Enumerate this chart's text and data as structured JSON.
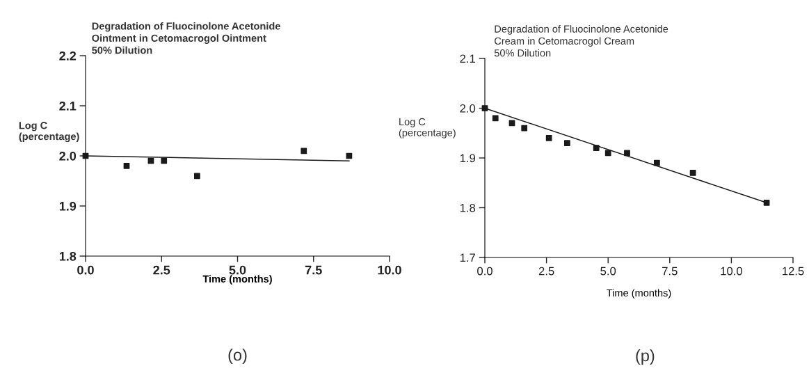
{
  "chart_data": [
    {
      "type": "scatter",
      "title": "Degradation of Fluocinolone Acetonide\nOintment in Cetomacrogol Ointment\n50% Dilution",
      "xlabel": "Time (months)",
      "ylabel": "Log C\n(percentage)",
      "marker": "square",
      "grid": false,
      "legend": false,
      "xlim": [
        0,
        10
      ],
      "xticks": [
        {
          "value": 0,
          "label": "0.0"
        },
        {
          "value": 2.5,
          "label": "2.5"
        },
        {
          "value": 5,
          "label": "5.0"
        },
        {
          "value": 7.5,
          "label": "7.5"
        },
        {
          "value": 10,
          "label": "10.0"
        }
      ],
      "ylim": [
        1.8,
        2.2
      ],
      "yticks": [
        {
          "value": 1.8,
          "label": "1.8"
        },
        {
          "value": 1.9,
          "label": "1.9"
        },
        {
          "value": 2.0,
          "label": "2.0"
        },
        {
          "value": 2.1,
          "label": "2.1"
        },
        {
          "value": 2.2,
          "label": "2.2"
        }
      ],
      "series": [
        {
          "color": "#1a1a1a",
          "x": [
            0.0,
            1.35,
            2.15,
            2.58,
            3.67,
            7.18,
            8.67
          ],
          "values": [
            2.0,
            1.98,
            1.99,
            1.99,
            1.96,
            2.01,
            2.0
          ]
        },
        {
          "type": "line",
          "color": "#1a1a1a",
          "marker": "none",
          "x": [
            0.0,
            8.67
          ],
          "values": [
            2.0,
            1.99
          ]
        }
      ],
      "annotations": [
        "(o)"
      ]
    },
    {
      "type": "scatter",
      "title": "Degradation of Fluocinolone Acetonide\nCream in Cetomacrogol Cream\n50% Dilution",
      "xlabel": "Time (months)",
      "ylabel": "Log C\n(percentage)",
      "marker": "square",
      "grid": false,
      "legend": false,
      "xlim": [
        0,
        12.5
      ],
      "xticks": [
        {
          "value": 0,
          "label": "0.0"
        },
        {
          "value": 2.5,
          "label": "2.5"
        },
        {
          "value": 5,
          "label": "5.0"
        },
        {
          "value": 7.5,
          "label": "7.5"
        },
        {
          "value": 10,
          "label": "10.0"
        },
        {
          "value": 12.5,
          "label": "12.5"
        }
      ],
      "ylim": [
        1.7,
        2.1
      ],
      "yticks": [
        {
          "value": 1.7,
          "label": "1.7"
        },
        {
          "value": 1.8,
          "label": "1.8"
        },
        {
          "value": 1.9,
          "label": "1.9"
        },
        {
          "value": 2.0,
          "label": "2.0"
        },
        {
          "value": 2.1,
          "label": "2.1"
        }
      ],
      "series": [
        {
          "color": "#1a1a1a",
          "x": [
            0.0,
            0.43,
            1.1,
            1.6,
            2.6,
            3.34,
            4.52,
            5.0,
            5.77,
            6.98,
            8.44,
            11.43
          ],
          "values": [
            2.0,
            1.98,
            1.97,
            1.96,
            1.94,
            1.93,
            1.92,
            1.91,
            1.91,
            1.89,
            1.87,
            1.81
          ]
        },
        {
          "type": "line",
          "color": "#1a1a1a",
          "marker": "none",
          "x": [
            0.0,
            11.43
          ],
          "values": [
            2.0,
            1.81
          ]
        }
      ],
      "annotations": [
        "(p)"
      ]
    }
  ]
}
